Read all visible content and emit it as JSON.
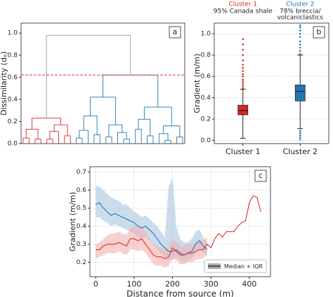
{
  "chart_data": [
    {
      "type": "dendrogram",
      "panel": "a",
      "ylabel": "Dissimilarity (dₑ)",
      "ylim": [
        0,
        1.09
      ],
      "yticks": [
        {
          "value": 0,
          "label": "0.0"
        },
        0.2,
        0.4,
        0.6,
        0.8,
        {
          "value": 1,
          "label": "1.0"
        }
      ],
      "threshold": 0.62,
      "threshold_color": "#e03030",
      "tree": {
        "h": 0.98,
        "color": "#9a9a9a",
        "children": [
          {
            "h": 0.23,
            "color": "#d62728",
            "children": [
              {
                "h": 0.13,
                "children": [
                  {
                    "h": 0.05,
                    "children": [
                      {
                        "h": 0
                      },
                      {
                        "h": 0
                      }
                    ]
                  },
                  {
                    "h": 0.04,
                    "children": [
                      {
                        "h": 0
                      },
                      {
                        "h": 0
                      }
                    ]
                  }
                ]
              },
              {
                "h": 0.17,
                "children": [
                  {
                    "h": 0.11,
                    "children": [
                      {
                        "h": 0.04,
                        "children": [
                          {
                            "h": 0
                          },
                          {
                            "h": 0
                          }
                        ]
                      },
                      {
                        "h": 0
                      }
                    ]
                  },
                  {
                    "h": 0.07,
                    "children": [
                      {
                        "h": 0
                      },
                      {
                        "h": 0
                      }
                    ]
                  }
                ]
              }
            ]
          },
          {
            "h": 0.62,
            "color": "#1f77b4",
            "children": [
              {
                "h": 0.42,
                "children": [
                  {
                    "h": 0.25,
                    "children": [
                      {
                        "h": 0.12,
                        "children": [
                          {
                            "h": 0.05,
                            "children": [
                              {
                                "h": 0
                              },
                              {
                                "h": 0
                              }
                            ]
                          },
                          {
                            "h": 0
                          }
                        ]
                      },
                      {
                        "h": 0.08,
                        "children": [
                          {
                            "h": 0
                          },
                          {
                            "h": 0
                          }
                        ]
                      }
                    ]
                  },
                  {
                    "h": 0.17,
                    "children": [
                      {
                        "h": 0.06,
                        "children": [
                          {
                            "h": 0
                          },
                          {
                            "h": 0
                          }
                        ]
                      },
                      {
                        "h": 0.1,
                        "children": [
                          {
                            "h": 0
                          },
                          {
                            "h": 0.04,
                            "children": [
                              {
                                "h": 0
                              },
                              {
                                "h": 0
                              }
                            ]
                          }
                        ]
                      }
                    ]
                  }
                ]
              },
              {
                "h": 0.33,
                "children": [
                  {
                    "h": 0.22,
                    "children": [
                      {
                        "h": 0.13,
                        "children": [
                          {
                            "h": 0
                          },
                          {
                            "h": 0
                          }
                        ]
                      },
                      {
                        "h": 0.07,
                        "children": [
                          {
                            "h": 0
                          },
                          {
                            "h": 0
                          }
                        ]
                      }
                    ]
                  },
                  {
                    "h": 0.16,
                    "children": [
                      {
                        "h": 0.09,
                        "children": [
                          {
                            "h": 0
                          },
                          {
                            "h": 0.03,
                            "children": [
                              {
                                "h": 0
                              },
                              {
                                "h": 0
                              }
                            ]
                          }
                        ]
                      },
                      {
                        "h": 0.06,
                        "children": [
                          {
                            "h": 0
                          },
                          {
                            "h": 0
                          }
                        ]
                      }
                    ]
                  }
                ]
              }
            ]
          }
        ]
      }
    },
    {
      "type": "box",
      "panel": "b",
      "ylabel": "Gradient (m/m)",
      "grid": true,
      "categories": [
        "Cluster 1",
        "Cluster 2"
      ],
      "colors": [
        "#d62728",
        "#1f77b4"
      ],
      "category_notes": [
        [
          "95% Canada shale"
        ],
        [
          "78% breccia/",
          "volcaniclastics"
        ]
      ],
      "ylim": [
        -0.03,
        1.1
      ],
      "yticks": [
        {
          "value": 0,
          "label": "0.0"
        },
        0.2,
        0.4,
        0.6,
        0.8,
        {
          "value": 1,
          "label": "1.0"
        }
      ],
      "boxes": [
        {
          "whislo": 0.02,
          "q1": 0.24,
          "med": 0.28,
          "q3": 0.33,
          "whishi": 0.48,
          "fliers": [
            0.49,
            0.51,
            0.53,
            0.55,
            0.57,
            0.6,
            0.62,
            0.65,
            0.68,
            0.71,
            0.75,
            0.8,
            0.85,
            0.9,
            0.95
          ]
        },
        {
          "whislo": 0.11,
          "q1": 0.37,
          "med": 0.46,
          "q3": 0.52,
          "whishi": 0.8,
          "fliers": [
            0.01,
            0.03,
            0.05,
            0.07,
            0.09,
            0.81,
            0.84,
            0.87,
            0.9,
            0.93,
            0.97,
            1.0,
            1.03,
            1.06,
            1.08
          ]
        }
      ]
    },
    {
      "type": "line",
      "panel": "c",
      "xlabel": "Distance from source (m)",
      "ylabel": "Gradient (m/m)",
      "grid": true,
      "legend_label": "Median + IQR",
      "legend": "lower right",
      "xlim": [
        -15,
        455
      ],
      "xticks": [
        0,
        100,
        200,
        300,
        400
      ],
      "ylim": [
        0.12,
        0.73
      ],
      "yticks": [
        0.2,
        0.3,
        0.4,
        0.5,
        0.6,
        0.7
      ],
      "x": [
        0,
        10,
        20,
        30,
        40,
        50,
        60,
        70,
        80,
        90,
        100,
        110,
        120,
        130,
        140,
        150,
        160,
        170,
        180,
        190,
        200,
        210,
        220,
        230,
        240,
        250,
        260,
        270,
        280,
        290,
        300,
        310,
        320,
        330,
        340,
        350,
        360,
        370,
        380,
        390,
        400,
        410,
        420,
        430
      ],
      "series": [
        {
          "color": "#1f77b4",
          "band_color": "#a9c6e0",
          "values": [
            0.52,
            0.53,
            0.5,
            0.48,
            0.46,
            0.47,
            0.46,
            0.45,
            0.44,
            0.43,
            0.42,
            0.4,
            0.39,
            0.4,
            0.38,
            0.36,
            0.33,
            0.3,
            0.28,
            0.26,
            0.26,
            0.27,
            0.25,
            0.24,
            0.25,
            0.26,
            0.3,
            0.32,
            0.29,
            0.27,
            null,
            null,
            null,
            null,
            null,
            null,
            null,
            null,
            null,
            null,
            null,
            null,
            null,
            null
          ],
          "upper": [
            0.62,
            0.62,
            0.6,
            0.58,
            0.56,
            0.55,
            0.54,
            0.52,
            0.52,
            0.5,
            0.48,
            0.47,
            0.45,
            0.46,
            0.44,
            0.42,
            0.4,
            0.37,
            0.34,
            0.62,
            0.67,
            0.4,
            0.33,
            0.31,
            0.31,
            0.33,
            0.37,
            0.38,
            0.34,
            0.31,
            null,
            null,
            null,
            null,
            null,
            null,
            null,
            null,
            null,
            null,
            null,
            null,
            null,
            null
          ],
          "lower": [
            0.45,
            0.45,
            0.43,
            0.42,
            0.4,
            0.41,
            0.4,
            0.39,
            0.38,
            0.37,
            0.36,
            0.34,
            0.33,
            0.34,
            0.32,
            0.3,
            0.27,
            0.25,
            0.23,
            0.21,
            0.22,
            0.23,
            0.21,
            0.2,
            0.21,
            0.22,
            0.25,
            0.27,
            0.25,
            0.23,
            null,
            null,
            null,
            null,
            null,
            null,
            null,
            null,
            null,
            null,
            null,
            null,
            null,
            null
          ]
        },
        {
          "color": "#e03030",
          "band_color": "#f2b0b0",
          "values": [
            0.27,
            0.27,
            0.29,
            0.3,
            0.3,
            0.3,
            0.31,
            0.3,
            0.29,
            0.33,
            0.33,
            0.32,
            0.33,
            0.3,
            0.27,
            0.24,
            0.23,
            0.23,
            0.22,
            0.23,
            0.28,
            0.26,
            0.24,
            0.24,
            0.25,
            0.25,
            0.26,
            0.27,
            0.27,
            0.3,
            0.28,
            0.33,
            0.36,
            0.34,
            0.37,
            0.37,
            0.37,
            0.4,
            0.42,
            0.43,
            0.53,
            0.57,
            0.56,
            0.48
          ],
          "upper": [
            0.3,
            0.31,
            0.33,
            0.35,
            0.36,
            0.36,
            0.37,
            0.36,
            0.35,
            0.39,
            0.4,
            0.39,
            0.4,
            0.37,
            0.33,
            0.3,
            0.29,
            0.28,
            0.27,
            0.28,
            0.33,
            0.31,
            0.29,
            0.29,
            0.3,
            0.3,
            0.31,
            0.32,
            0.32,
            0.34,
            null,
            null,
            null,
            null,
            null,
            null,
            null,
            null,
            null,
            null,
            null,
            null,
            null,
            null
          ],
          "lower": [
            0.22,
            0.23,
            0.24,
            0.25,
            0.25,
            0.25,
            0.26,
            0.25,
            0.24,
            0.27,
            0.27,
            0.26,
            0.27,
            0.25,
            0.22,
            0.19,
            0.18,
            0.18,
            0.17,
            0.18,
            0.22,
            0.21,
            0.19,
            0.19,
            0.2,
            0.2,
            0.21,
            0.22,
            0.22,
            0.25,
            null,
            null,
            null,
            null,
            null,
            null,
            null,
            null,
            null,
            null,
            null,
            null,
            null,
            null
          ]
        }
      ]
    }
  ]
}
